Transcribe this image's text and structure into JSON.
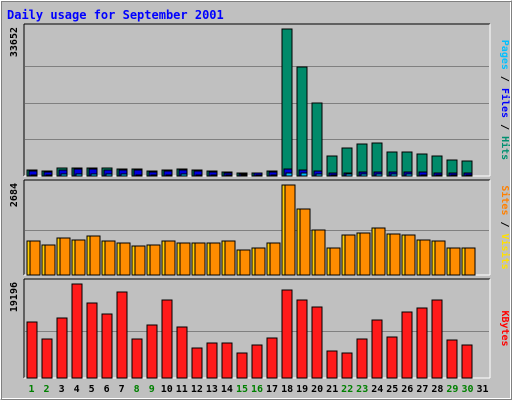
{
  "chart_data": {
    "type": "bar",
    "title": "Daily usage for September 2001",
    "categories": [
      "1",
      "2",
      "3",
      "4",
      "5",
      "6",
      "7",
      "8",
      "9",
      "10",
      "11",
      "12",
      "13",
      "14",
      "15",
      "16",
      "17",
      "18",
      "19",
      "20",
      "21",
      "22",
      "23",
      "24",
      "25",
      "26",
      "27",
      "28",
      "29",
      "30",
      "31"
    ],
    "weekend_days": [
      "1",
      "2",
      "8",
      "9",
      "15",
      "16",
      "22",
      "23",
      "29",
      "30"
    ],
    "panels": [
      {
        "id": "hits",
        "ymax": 33652,
        "ymax_label": "33652",
        "grid": 4,
        "side_label": [
          {
            "text": "Pages",
            "color": "#00c0ff"
          },
          {
            "text": " / ",
            "color": "#000000"
          },
          {
            "text": "Files",
            "color": "#0000ff"
          },
          {
            "text": " / ",
            "color": "#000000"
          },
          {
            "text": "Hits",
            "color": "#009070"
          }
        ],
        "series": [
          {
            "key": "hits",
            "color": "#008a6a",
            "values": [
              1350,
              1150,
              1750,
              1900,
              1900,
              1750,
              1700,
              1600,
              1200,
              1400,
              1650,
              1400,
              1100,
              950,
              700,
              750,
              1150,
              33652,
              25000,
              16800,
              4550,
              6400,
              7400,
              7600,
              5600,
              5500,
              5150,
              4650,
              3600,
              3500,
              0
            ]
          },
          {
            "key": "files",
            "color": "#0000e0",
            "values": [
              1100,
              950,
              1400,
              1500,
              1500,
              1400,
              1350,
              1300,
              1000,
              1150,
              1350,
              1150,
              900,
              750,
              550,
              600,
              950,
              1500,
              1300,
              1100,
              650,
              800,
              950,
              1000,
              900,
              900,
              850,
              800,
              700,
              700,
              0
            ]
          },
          {
            "key": "pages",
            "color": "#00c0ff",
            "values": [
              300,
              250,
              350,
              400,
              400,
              350,
              350,
              300,
              250,
              300,
              350,
              300,
              250,
              200,
              150,
              150,
              250,
              700,
              600,
              500,
              300,
              350,
              400,
              400,
              350,
              350,
              300,
              300,
              250,
              250,
              0
            ]
          }
        ]
      },
      {
        "id": "visits",
        "ymax": 2684,
        "ymax_label": "2684",
        "grid": 2,
        "side_label": [
          {
            "text": "Sites",
            "color": "#ff8000"
          },
          {
            "text": " / ",
            "color": "#000000"
          },
          {
            "text": "Visits",
            "color": "#ffe000"
          }
        ],
        "series": [
          {
            "key": "visits",
            "color": "#ffcc00",
            "values": [
              1000,
              900,
              1100,
              1050,
              1150,
              1000,
              950,
              850,
              900,
              1000,
              950,
              950,
              950,
              1000,
              750,
              800,
              950,
              2684,
              1980,
              1330,
              800,
              1180,
              1260,
              1400,
              1220,
              1200,
              1050,
              1000,
              800,
              800,
              0
            ]
          },
          {
            "key": "sites",
            "color": "#ff8c00",
            "values": [
              1000,
              900,
              1100,
              1050,
              1150,
              1000,
              950,
              850,
              900,
              1000,
              950,
              950,
              950,
              1000,
              750,
              800,
              950,
              2684,
              1980,
              1330,
              800,
              1180,
              1260,
              1400,
              1220,
              1200,
              1050,
              1000,
              800,
              800,
              0
            ]
          }
        ]
      },
      {
        "id": "kbytes",
        "ymax": 19196,
        "ymax_label": "19196",
        "grid": 2,
        "side_label": [
          {
            "text": "KBytes",
            "color": "#ff0000"
          }
        ],
        "series": [
          {
            "key": "kbytes",
            "color": "#ff1a1a",
            "values": [
              11400,
              7900,
              12300,
              19196,
              15300,
              13100,
              17500,
              7900,
              10900,
              16000,
              10500,
              6100,
              7200,
              7200,
              5200,
              6800,
              8200,
              17900,
              16000,
              14500,
              5500,
              5200,
              8000,
              11900,
              8300,
              13400,
              14300,
              16000,
              7700,
              6700,
              0
            ]
          }
        ]
      }
    ]
  }
}
